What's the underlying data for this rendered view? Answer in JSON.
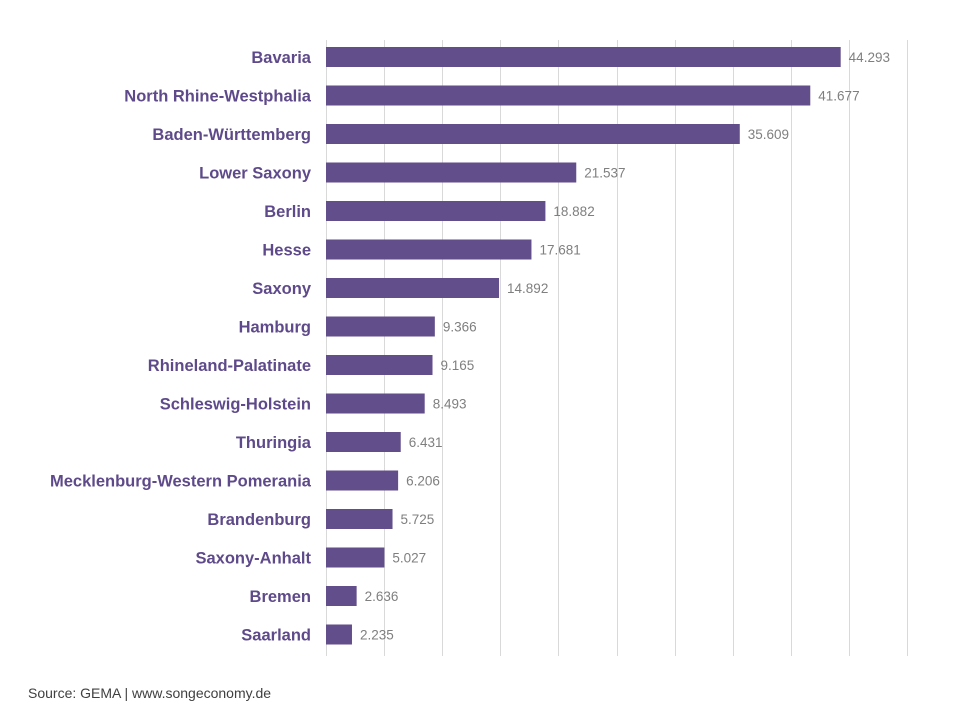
{
  "chart_data": {
    "type": "bar",
    "orientation": "horizontal",
    "categories": [
      "Bavaria",
      "North Rhine-Westphalia",
      "Baden-Württemberg",
      "Lower Saxony",
      "Berlin",
      "Hesse",
      "Saxony",
      "Hamburg",
      "Rhineland-Palatinate",
      "Schleswig-Holstein",
      "Thuringia",
      "Mecklenburg-Western Pomerania",
      "Brandenburg",
      "Saxony-Anhalt",
      "Bremen",
      "Saarland"
    ],
    "values": [
      44.293,
      41.677,
      35.609,
      21.537,
      18.882,
      17.681,
      14.892,
      9.366,
      9.165,
      8.493,
      6.431,
      6.206,
      5.725,
      5.027,
      2.636,
      2.235
    ],
    "data_labels": [
      "44.293",
      "41.677",
      "35.609",
      "21.537",
      "18.882",
      "17.681",
      "14.892",
      "9.366",
      "9.165",
      "8.493",
      "6.431",
      "6.206",
      "5.725",
      "5.027",
      "2.636",
      "2.235"
    ],
    "xlim": [
      0,
      50
    ],
    "grid_step": 5,
    "grid": true,
    "axis_tick_labels_shown": false,
    "bar_color": "#614e8a",
    "label_color": "#5e4a8a",
    "title": "",
    "xlabel": "",
    "ylabel": ""
  },
  "source": "Source: GEMA | www.songeconomy.de"
}
